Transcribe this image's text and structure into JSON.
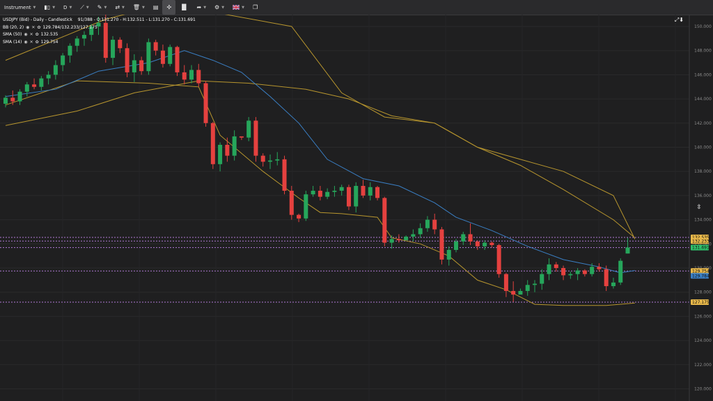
{
  "toolbar": {
    "instrument_label": "Instrument",
    "timeframe_label": "D",
    "icons": [
      "candles-icon",
      "draw-line-icon",
      "pencil-icon",
      "indicators-icon",
      "trash-icon",
      "layout-icon",
      "grid-icon",
      "bar-chart-icon",
      "share-icon",
      "settings-icon",
      "flag-uk-icon",
      "popout-icon"
    ]
  },
  "legend": {
    "title": "USDJPY (Bid) - Daily - Candlestick",
    "ohlc": "91/388 - O:131.270 - H:132.511 - L:131.270 - C:131.691",
    "bb_label": "BB (20, 2)",
    "bb_values": "129.784/132.233/127.175",
    "sma50_label": "SMA (50)",
    "sma50_value": "132.535",
    "sma14_label": "SMA (14)",
    "sma14_value": "129.754"
  },
  "colors": {
    "up": "#26a65b",
    "down": "#e5413f",
    "bb": "#b8962e",
    "sma14": "#3a7fc4",
    "sma50": "#b8962e",
    "marker": "#b07ad6"
  },
  "chart_data": {
    "type": "candlestick",
    "symbol": "USDJPY (Bid)",
    "interval": "Daily",
    "ylim": [
      118,
      151
    ],
    "y_ticks": [
      "150.000",
      "148.000",
      "146.000",
      "144.000",
      "142.000",
      "140.000",
      "138.000",
      "136.000",
      "134.000",
      "132.000",
      "130.000",
      "128.000",
      "126.000",
      "124.000",
      "122.000",
      "120.000"
    ],
    "price_labels": [
      {
        "value": "132.535",
        "label": "132.535",
        "color": "#e8b84a",
        "price": 132.535
      },
      {
        "value": "132.233",
        "label": "132.233",
        "color": "#e8b84a",
        "price": 132.233
      },
      {
        "value": "131.691",
        "label": "131.691",
        "color": "#2fbf6a",
        "price": 131.691
      },
      {
        "value": "129.754",
        "label": "129.754",
        "color": "#e8b84a",
        "price": 129.754
      },
      {
        "value": "129.784",
        "label": "129.784",
        "color": "#3a7fc4",
        "price": 129.35
      },
      {
        "value": "127.175",
        "label": "127.175",
        "color": "#e8b84a",
        "price": 127.175
      }
    ],
    "marker_lines": [
      132.535,
      132.233,
      131.691,
      129.754,
      127.175
    ],
    "candles": [
      [
        143.6,
        144.3,
        143.3,
        144.1
      ],
      [
        144.1,
        144.7,
        143.5,
        143.8
      ],
      [
        143.8,
        144.8,
        143.5,
        144.6
      ],
      [
        144.6,
        145.4,
        144.2,
        145.2
      ],
      [
        145.2,
        145.7,
        144.8,
        145.0
      ],
      [
        145.0,
        145.9,
        144.7,
        145.7
      ],
      [
        145.7,
        146.3,
        145.2,
        146.0
      ],
      [
        146.0,
        147.2,
        145.6,
        146.8
      ],
      [
        146.8,
        147.8,
        146.3,
        147.6
      ],
      [
        147.6,
        148.6,
        147.0,
        148.4
      ],
      [
        148.4,
        149.2,
        147.9,
        149.0
      ],
      [
        149.0,
        149.6,
        148.4,
        149.3
      ],
      [
        149.3,
        150.2,
        148.8,
        150.0
      ],
      [
        150.0,
        150.8,
        149.3,
        150.3
      ],
      [
        150.3,
        151.2,
        147.0,
        147.4
      ],
      [
        147.4,
        149.2,
        146.8,
        148.9
      ],
      [
        148.9,
        149.1,
        147.8,
        148.2
      ],
      [
        148.2,
        148.6,
        145.8,
        146.2
      ],
      [
        146.2,
        147.7,
        145.4,
        147.2
      ],
      [
        147.2,
        147.5,
        146.0,
        146.3
      ],
      [
        146.3,
        149.0,
        146.0,
        148.7
      ],
      [
        148.7,
        148.9,
        147.6,
        148.0
      ],
      [
        148.0,
        148.5,
        146.6,
        146.9
      ],
      [
        146.9,
        148.5,
        146.7,
        148.3
      ],
      [
        148.3,
        148.4,
        145.9,
        146.2
      ],
      [
        146.2,
        146.8,
        145.2,
        145.6
      ],
      [
        145.6,
        146.8,
        145.3,
        146.4
      ],
      [
        146.4,
        146.9,
        145.0,
        145.3
      ],
      [
        145.3,
        145.5,
        141.7,
        142.0
      ],
      [
        142.0,
        142.1,
        138.2,
        138.6
      ],
      [
        138.6,
        140.4,
        138.0,
        140.2
      ],
      [
        140.2,
        140.8,
        138.8,
        139.3
      ],
      [
        139.3,
        141.4,
        138.9,
        140.9
      ],
      [
        140.9,
        140.9,
        140.6,
        140.8
      ],
      [
        140.8,
        142.5,
        140.5,
        142.2
      ],
      [
        142.2,
        142.5,
        138.8,
        139.3
      ],
      [
        139.3,
        139.5,
        138.4,
        138.8
      ],
      [
        138.8,
        139.4,
        138.2,
        138.9
      ],
      [
        138.9,
        139.6,
        138.5,
        139.0
      ],
      [
        139.0,
        139.3,
        136.1,
        136.4
      ],
      [
        136.4,
        136.8,
        134.0,
        134.4
      ],
      [
        134.4,
        134.5,
        133.8,
        134.1
      ],
      [
        134.1,
        136.4,
        133.9,
        136.1
      ],
      [
        136.1,
        136.8,
        135.9,
        136.4
      ],
      [
        136.4,
        136.8,
        135.6,
        135.9
      ],
      [
        135.9,
        136.6,
        135.7,
        136.3
      ],
      [
        136.3,
        136.8,
        135.9,
        136.4
      ],
      [
        136.4,
        136.9,
        136.0,
        136.7
      ],
      [
        136.7,
        136.9,
        134.8,
        135.1
      ],
      [
        135.1,
        137.1,
        134.6,
        136.8
      ],
      [
        136.8,
        137.3,
        135.8,
        136.0
      ],
      [
        136.0,
        137.1,
        135.6,
        136.7
      ],
      [
        136.7,
        136.8,
        135.6,
        135.8
      ],
      [
        135.8,
        135.9,
        131.8,
        132.1
      ],
      [
        132.1,
        132.7,
        131.6,
        132.4
      ],
      [
        132.4,
        132.8,
        132.1,
        132.3
      ],
      [
        132.3,
        132.7,
        132.3,
        132.6
      ],
      [
        132.6,
        133.2,
        132.2,
        132.8
      ],
      [
        132.8,
        133.7,
        132.5,
        133.3
      ],
      [
        133.3,
        134.3,
        133.0,
        134.0
      ],
      [
        134.0,
        134.5,
        132.8,
        133.2
      ],
      [
        133.2,
        133.4,
        130.3,
        130.7
      ],
      [
        130.7,
        131.8,
        130.2,
        131.5
      ],
      [
        131.5,
        132.4,
        131.3,
        132.2
      ],
      [
        132.2,
        133.0,
        131.9,
        132.8
      ],
      [
        132.8,
        133.7,
        131.9,
        132.2
      ],
      [
        132.2,
        132.3,
        131.5,
        131.8
      ],
      [
        131.8,
        132.3,
        131.5,
        132.1
      ],
      [
        132.1,
        132.2,
        131.7,
        131.9
      ],
      [
        131.9,
        132.0,
        129.2,
        129.5
      ],
      [
        129.5,
        129.6,
        127.6,
        128.1
      ],
      [
        128.1,
        128.9,
        127.2,
        127.8
      ],
      [
        127.8,
        128.3,
        127.9,
        128.1
      ],
      [
        128.1,
        129.0,
        127.7,
        128.6
      ],
      [
        128.6,
        129.0,
        128.0,
        128.7
      ],
      [
        128.7,
        129.9,
        128.2,
        129.5
      ],
      [
        129.5,
        130.8,
        129.0,
        130.3
      ],
      [
        130.3,
        130.5,
        129.7,
        130.0
      ],
      [
        130.0,
        130.2,
        129.0,
        129.4
      ],
      [
        129.4,
        129.7,
        129.1,
        129.5
      ],
      [
        129.5,
        130.0,
        129.0,
        129.8
      ],
      [
        129.8,
        129.9,
        129.3,
        129.5
      ],
      [
        129.5,
        130.4,
        129.3,
        130.1
      ],
      [
        130.1,
        130.4,
        129.7,
        129.9
      ],
      [
        129.9,
        130.2,
        128.1,
        128.5
      ],
      [
        128.5,
        129.2,
        128.3,
        128.8
      ],
      [
        128.8,
        130.8,
        128.6,
        130.6
      ],
      [
        131.2,
        132.5,
        131.2,
        131.7
      ]
    ],
    "series": [
      {
        "name": "BB upper",
        "kind": "bb",
        "values": [
          [
            0,
            147.2
          ],
          [
            14,
            150.6
          ],
          [
            22,
            151.8
          ],
          [
            27,
            151.4
          ],
          [
            40,
            150.0
          ],
          [
            47,
            144.5
          ],
          [
            53,
            142.5
          ],
          [
            60,
            142.0
          ],
          [
            66,
            140.0
          ],
          [
            72,
            139.0
          ],
          [
            78,
            138.0
          ],
          [
            85,
            136.0
          ],
          [
            88,
            132.4
          ]
        ]
      },
      {
        "name": "BB lower",
        "kind": "bb",
        "values": [
          [
            0,
            143.5
          ],
          [
            10,
            145.5
          ],
          [
            20,
            145.3
          ],
          [
            27,
            145.0
          ],
          [
            30,
            141.0
          ],
          [
            36,
            138.0
          ],
          [
            41,
            135.8
          ],
          [
            44,
            134.6
          ],
          [
            47,
            134.5
          ],
          [
            52,
            134.2
          ],
          [
            54,
            132.5
          ],
          [
            58,
            132.0
          ],
          [
            62,
            131.0
          ],
          [
            66,
            129.0
          ],
          [
            70,
            128.2
          ],
          [
            74,
            127.0
          ],
          [
            78,
            126.9
          ],
          [
            84,
            126.9
          ],
          [
            88,
            127.1
          ]
        ]
      },
      {
        "name": "SMA 50",
        "kind": "sma50",
        "values": [
          [
            0,
            141.8
          ],
          [
            10,
            143.0
          ],
          [
            18,
            144.5
          ],
          [
            27,
            145.5
          ],
          [
            34,
            145.3
          ],
          [
            42,
            144.8
          ],
          [
            48,
            144.0
          ],
          [
            54,
            142.6
          ],
          [
            60,
            142.0
          ],
          [
            66,
            140.0
          ],
          [
            72,
            138.5
          ],
          [
            78,
            136.5
          ],
          [
            85,
            134.0
          ],
          [
            88,
            132.5
          ]
        ]
      },
      {
        "name": "SMA 14",
        "kind": "sma14",
        "values": [
          [
            0,
            144.2
          ],
          [
            7,
            144.8
          ],
          [
            13,
            146.3
          ],
          [
            20,
            147.0
          ],
          [
            25,
            148.0
          ],
          [
            29,
            147.2
          ],
          [
            33,
            146.2
          ],
          [
            37,
            144.2
          ],
          [
            41,
            142.0
          ],
          [
            45,
            139.0
          ],
          [
            50,
            137.4
          ],
          [
            55,
            136.8
          ],
          [
            60,
            135.4
          ],
          [
            63,
            134.2
          ],
          [
            68,
            133.1
          ],
          [
            73,
            131.8
          ],
          [
            78,
            130.7
          ],
          [
            83,
            130.1
          ],
          [
            86,
            129.6
          ],
          [
            88,
            129.8
          ]
        ]
      }
    ]
  }
}
